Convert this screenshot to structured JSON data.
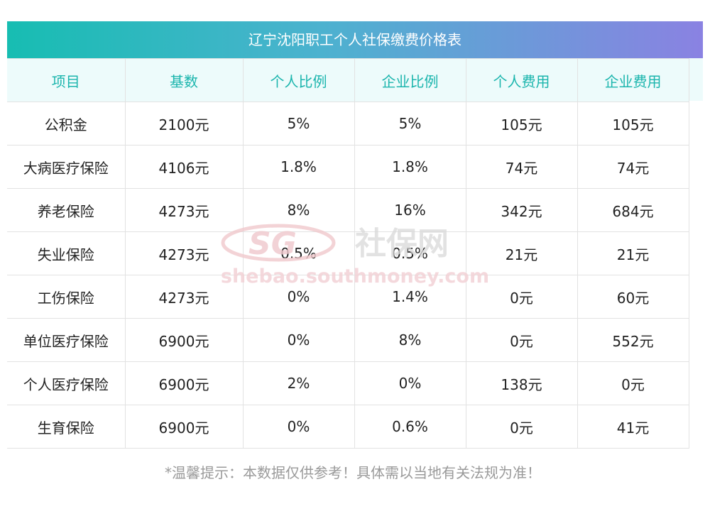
{
  "title": "辽宁沈阳职工个人社保缴费价格表",
  "columns": [
    "项目",
    "基数",
    "个人比例",
    "企业比例",
    "个人费用",
    "企业费用"
  ],
  "rows": [
    [
      "公积金",
      "2100元",
      "5%",
      "5%",
      "105元",
      "105元"
    ],
    [
      "大病医疗保险",
      "4106元",
      "1.8%",
      "1.8%",
      "74元",
      "74元"
    ],
    [
      "养老保险",
      "4273元",
      "8%",
      "16%",
      "342元",
      "684元"
    ],
    [
      "失业保险",
      "4273元",
      "0.5%",
      "0.5%",
      "21元",
      "21元"
    ],
    [
      "工伤保险",
      "4273元",
      "0%",
      "1.4%",
      "0元",
      "60元"
    ],
    [
      "单位医疗保险",
      "6900元",
      "0%",
      "8%",
      "0元",
      "552元"
    ],
    [
      "个人医疗保险",
      "6900元",
      "2%",
      "0%",
      "138元",
      "0元"
    ],
    [
      "生育保险",
      "6900元",
      "0%",
      "0.6%",
      "0元",
      "41元"
    ]
  ],
  "watermark": {
    "logo_text": "SG",
    "brand_text": "社保网",
    "url_text": "shebao.southmoney.com"
  },
  "footnote": "*温馨提示：本数据仅供参考！具体需以当地有关法规为准！",
  "colors": {
    "title_gradient_start": "#17bdb2",
    "title_gradient_end": "#8a82e2",
    "header_text": "#1bb5ad",
    "header_bg": "#edfbfb",
    "footnote": "#9a9a9a"
  }
}
